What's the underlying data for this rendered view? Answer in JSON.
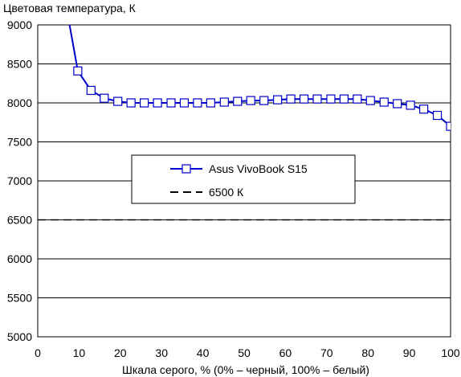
{
  "chart_data": {
    "type": "line",
    "title": "Цветовая температура, К",
    "xlabel": "Шкала серого, % (0% – черный, 100% – белый)",
    "ylabel": "",
    "xlim": [
      0,
      100
    ],
    "ylim": [
      5000,
      9000
    ],
    "xticks": [
      "0",
      "10",
      "20",
      "30",
      "40",
      "50",
      "60",
      "70",
      "80",
      "90",
      "100"
    ],
    "yticks": [
      "5000",
      "5500",
      "6000",
      "6500",
      "7000",
      "7500",
      "8000",
      "8500",
      "9000"
    ],
    "grid": "horizontal",
    "legend_position": "center-left",
    "series": [
      {
        "name": "Asus VivoBook S15",
        "color": "#0000cc",
        "marker": "square",
        "points_beyond_ylim": [
          [
            7.7,
            9000
          ],
          [
            6.5,
            9300
          ]
        ],
        "x": [
          9.7,
          12.9,
          16.1,
          19.4,
          22.6,
          25.8,
          29.0,
          32.3,
          35.5,
          38.7,
          41.9,
          45.2,
          48.4,
          51.6,
          54.8,
          58.1,
          61.3,
          64.5,
          67.7,
          71.0,
          74.2,
          77.4,
          80.6,
          83.9,
          87.1,
          90.3,
          93.5,
          96.8,
          100
        ],
        "y": [
          8410,
          8160,
          8060,
          8020,
          8000,
          8000,
          8000,
          8000,
          8000,
          8000,
          8000,
          8010,
          8020,
          8030,
          8030,
          8040,
          8050,
          8050,
          8050,
          8050,
          8050,
          8050,
          8030,
          8010,
          7990,
          7970,
          7920,
          7840,
          7700
        ]
      },
      {
        "name": "6500 К",
        "color": "#000000",
        "dash": true,
        "x": [
          0,
          100
        ],
        "y": [
          6500,
          6500
        ]
      }
    ]
  }
}
